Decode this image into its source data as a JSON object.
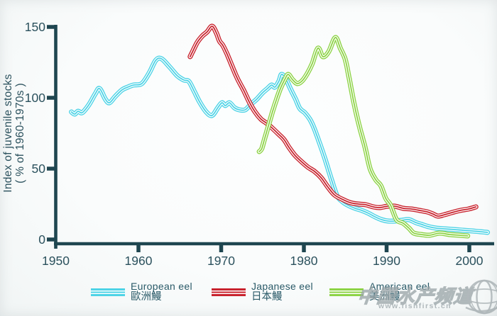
{
  "watermark": {
    "title": "中国水产频道",
    "url": "www.fishfirst.cn"
  },
  "chart_data": {
    "type": "line",
    "title": "",
    "ylabel": "Index of juvenile stocks",
    "ylabel2": "( % of 1960-1970s )",
    "xlabel": "",
    "xlim": [
      1950,
      2003.5
    ],
    "ylim": [
      0,
      152
    ],
    "x_ticks": [
      1950,
      1960,
      1970,
      1980,
      1990,
      2000
    ],
    "y_ticks": [
      0,
      50,
      100,
      150
    ],
    "grid": false,
    "legend_position": "bottom",
    "axis_color": "#1f4650",
    "text_color": "#2b515d",
    "series": [
      {
        "name": "European eel",
        "name_zh": "歐洲鰻",
        "color": "#4ed3e6",
        "points": [
          [
            1951.9,
            90
          ],
          [
            1952.3,
            88.5
          ],
          [
            1952.7,
            90.5
          ],
          [
            1953.2,
            89.5
          ],
          [
            1954,
            95
          ],
          [
            1954.8,
            103
          ],
          [
            1955.3,
            106.5
          ],
          [
            1956,
            99
          ],
          [
            1956.5,
            96.5
          ],
          [
            1957.2,
            101
          ],
          [
            1958,
            105.5
          ],
          [
            1958.7,
            107.5
          ],
          [
            1959.4,
            109
          ],
          [
            1960.4,
            110
          ],
          [
            1961.3,
            117.5
          ],
          [
            1962.1,
            126.5
          ],
          [
            1962.8,
            127.5
          ],
          [
            1963.8,
            121.5
          ],
          [
            1964.7,
            115.5
          ],
          [
            1965.5,
            112.5
          ],
          [
            1966.1,
            111.5
          ],
          [
            1966.7,
            105
          ],
          [
            1967.4,
            97
          ],
          [
            1968.2,
            90
          ],
          [
            1968.9,
            87.5
          ],
          [
            1969.6,
            93
          ],
          [
            1970.1,
            96.5
          ],
          [
            1970.5,
            94.5
          ],
          [
            1971,
            96.5
          ],
          [
            1971.6,
            93
          ],
          [
            1972.2,
            91.5
          ],
          [
            1972.9,
            91.5
          ],
          [
            1973.6,
            95.5
          ],
          [
            1974.3,
            99
          ],
          [
            1975,
            103.5
          ],
          [
            1975.6,
            106.5
          ],
          [
            1976.1,
            109
          ],
          [
            1976.5,
            107.5
          ],
          [
            1977,
            112
          ],
          [
            1977.3,
            116.5
          ],
          [
            1977.8,
            113.5
          ],
          [
            1978.4,
            106
          ],
          [
            1979,
            99
          ],
          [
            1979.5,
            92.5
          ],
          [
            1980.1,
            89.5
          ],
          [
            1980.7,
            85
          ],
          [
            1981.2,
            79
          ],
          [
            1981.9,
            68
          ],
          [
            1982.6,
            56
          ],
          [
            1983.3,
            43
          ],
          [
            1984,
            31
          ],
          [
            1984.7,
            26.5
          ],
          [
            1985.4,
            24
          ],
          [
            1986.2,
            22
          ],
          [
            1987,
            20.5
          ],
          [
            1987.8,
            18.5
          ],
          [
            1988.6,
            16
          ],
          [
            1989.4,
            14
          ],
          [
            1990.2,
            13
          ],
          [
            1991,
            13
          ],
          [
            1991.8,
            13.5
          ],
          [
            1992.7,
            14
          ],
          [
            1993.5,
            12
          ],
          [
            1994.3,
            10.5
          ],
          [
            1995.1,
            9
          ],
          [
            1996,
            8
          ],
          [
            1997,
            7.5
          ],
          [
            1998.2,
            7
          ],
          [
            1999.3,
            6.5
          ],
          [
            2000.4,
            6
          ],
          [
            2001.3,
            5.5
          ],
          [
            2002.2,
            5
          ]
        ]
      },
      {
        "name": "Japanese eel",
        "name_zh": "日本鰻",
        "color": "#c8232e",
        "points": [
          [
            1966.25,
            129
          ],
          [
            1966.5,
            132
          ],
          [
            1967.1,
            139
          ],
          [
            1967.7,
            143.5
          ],
          [
            1968.3,
            146.5
          ],
          [
            1968.9,
            150.5
          ],
          [
            1969.4,
            146
          ],
          [
            1969.8,
            140
          ],
          [
            1970.2,
            137
          ],
          [
            1970.7,
            131
          ],
          [
            1971.2,
            124
          ],
          [
            1971.7,
            117
          ],
          [
            1972.1,
            112
          ],
          [
            1972.7,
            105.5
          ],
          [
            1973.4,
            97
          ],
          [
            1974.1,
            90
          ],
          [
            1974.8,
            85
          ],
          [
            1975.5,
            82
          ],
          [
            1976.2,
            78.5
          ],
          [
            1977,
            74
          ],
          [
            1977.6,
            70.5
          ],
          [
            1978.2,
            65
          ],
          [
            1978.9,
            59.5
          ],
          [
            1979.7,
            55
          ],
          [
            1980.5,
            51
          ],
          [
            1981.3,
            48
          ],
          [
            1982.1,
            43.5
          ],
          [
            1982.9,
            37
          ],
          [
            1983.7,
            31.5
          ],
          [
            1984.6,
            28.5
          ],
          [
            1985.6,
            26
          ],
          [
            1986.6,
            25
          ],
          [
            1987.5,
            24.5
          ],
          [
            1988.4,
            23
          ],
          [
            1989.2,
            22.5
          ],
          [
            1990.1,
            23.5
          ],
          [
            1991,
            23.5
          ],
          [
            1992,
            22
          ],
          [
            1993,
            21.5
          ],
          [
            1994,
            20.5
          ],
          [
            1994.9,
            19.5
          ],
          [
            1995.6,
            18
          ],
          [
            1996.2,
            16.5
          ],
          [
            1997,
            17.5
          ],
          [
            1997.9,
            19
          ],
          [
            1998.9,
            20.5
          ],
          [
            1999.9,
            21.5
          ],
          [
            2000.8,
            23
          ]
        ]
      },
      {
        "name": "American eel",
        "name_zh": "美洲鰻",
        "color": "#8dd346",
        "points": [
          [
            1974.6,
            62
          ],
          [
            1974.9,
            64
          ],
          [
            1975.2,
            70
          ],
          [
            1975.7,
            80
          ],
          [
            1976.2,
            90
          ],
          [
            1976.7,
            99
          ],
          [
            1977.2,
            107
          ],
          [
            1977.7,
            113
          ],
          [
            1978.1,
            116.5
          ],
          [
            1978.6,
            113
          ],
          [
            1979.2,
            110
          ],
          [
            1979.8,
            112
          ],
          [
            1980.4,
            117
          ],
          [
            1981,
            124
          ],
          [
            1981.7,
            135
          ],
          [
            1982.3,
            129
          ],
          [
            1983,
            132.5
          ],
          [
            1983.8,
            142.5
          ],
          [
            1984.4,
            135
          ],
          [
            1985,
            127
          ],
          [
            1985.5,
            113
          ],
          [
            1986.1,
            95
          ],
          [
            1986.7,
            80
          ],
          [
            1987.4,
            65
          ],
          [
            1988,
            50
          ],
          [
            1988.7,
            42
          ],
          [
            1989.3,
            38
          ],
          [
            1989.9,
            29
          ],
          [
            1990.5,
            24
          ],
          [
            1991.2,
            14
          ],
          [
            1992,
            11.5
          ],
          [
            1992.7,
            8
          ],
          [
            1993.3,
            4.5
          ],
          [
            1994.2,
            3.5
          ],
          [
            1995.2,
            3
          ],
          [
            1996.4,
            4.5
          ],
          [
            1997.6,
            3.5
          ],
          [
            1998.8,
            3
          ],
          [
            1999.8,
            2.5
          ]
        ]
      }
    ]
  }
}
